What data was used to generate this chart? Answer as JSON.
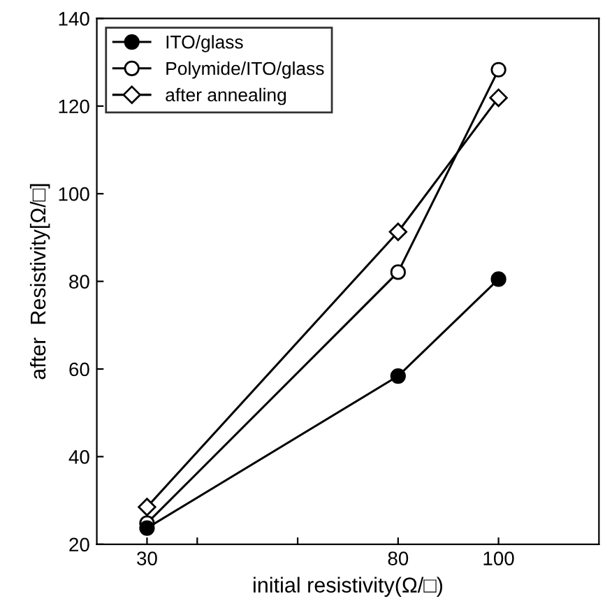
{
  "chart_data": {
    "type": "line",
    "xlabel": "initial resistivity(Ω/□)",
    "ylabel": "after  Resistivity[Ω/□]",
    "x": [
      30,
      80,
      100
    ],
    "series": [
      {
        "name": "ITO/glass",
        "color": "#000000",
        "values": [
          23.7,
          58.4,
          80.5
        ],
        "marker": "circle"
      },
      {
        "name": "Polymide/ITO/glass",
        "color": "#000000",
        "values": [
          24.8,
          82.1,
          128.3
        ],
        "marker": "circle"
      },
      {
        "name": "after annealing",
        "color": "#000000",
        "values": [
          28.5,
          91.3,
          121.9
        ],
        "marker": "diamond"
      }
    ],
    "xlim": [
      20,
      120
    ],
    "xticks": [
      30,
      {
        "value": 40,
        "label": null
      },
      {
        "value": 60,
        "label": null
      },
      80,
      100
    ],
    "ylim": [
      20,
      140
    ],
    "yticks": [
      20,
      40,
      60,
      80,
      100,
      120,
      140
    ],
    "grid": false,
    "legend": "top left",
    "line_style": "solid"
  }
}
